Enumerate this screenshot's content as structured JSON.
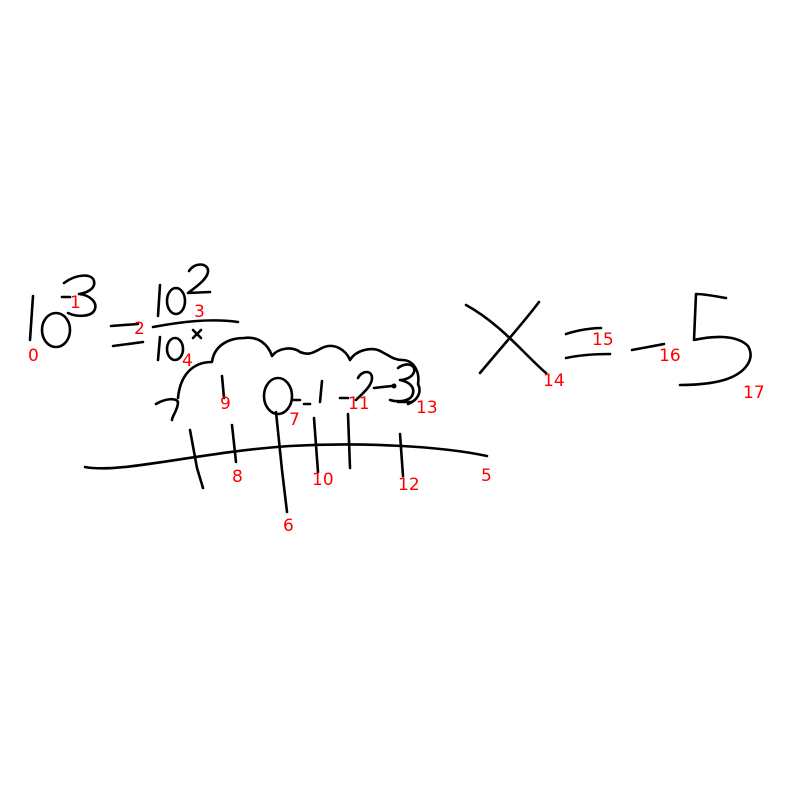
{
  "canvas": {
    "background": "#ffffff"
  },
  "stroke_color": "#000000",
  "label_color": "#ff0000",
  "strokes": [
    {
      "id": "0",
      "label": "0"
    },
    {
      "id": "1",
      "label": "1"
    },
    {
      "id": "2",
      "label": "2"
    },
    {
      "id": "3",
      "label": "3"
    },
    {
      "id": "4",
      "label": "4"
    },
    {
      "id": "5",
      "label": "5"
    },
    {
      "id": "6",
      "label": "6"
    },
    {
      "id": "7",
      "label": "7"
    },
    {
      "id": "8",
      "label": "8"
    },
    {
      "id": "9",
      "label": "9"
    },
    {
      "id": "10",
      "label": "10"
    },
    {
      "id": "11",
      "label": "11"
    },
    {
      "id": "12",
      "label": "12"
    },
    {
      "id": "13",
      "label": "13"
    },
    {
      "id": "14",
      "label": "14"
    },
    {
      "id": "15",
      "label": "15"
    },
    {
      "id": "16",
      "label": "16"
    },
    {
      "id": "17",
      "label": "17"
    }
  ]
}
